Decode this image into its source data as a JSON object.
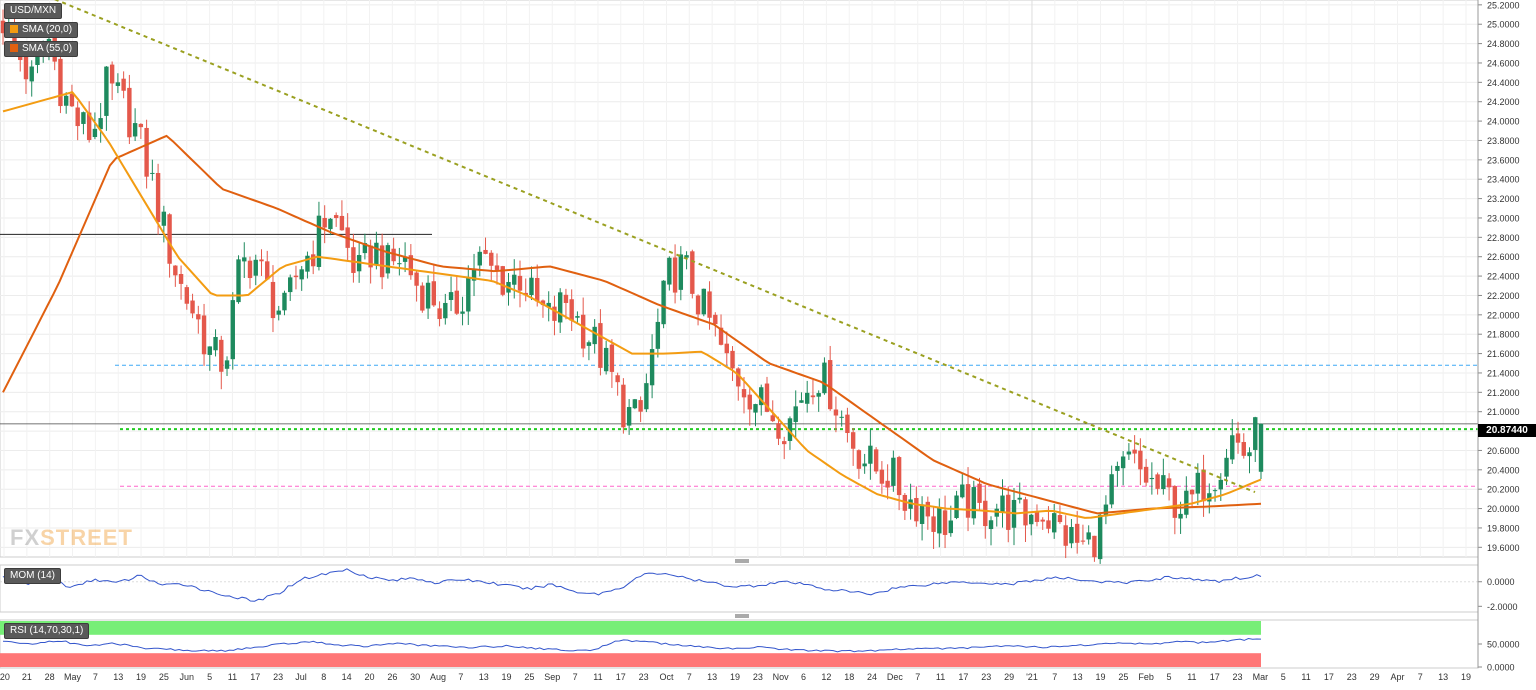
{
  "legend": {
    "symbol": "USD/MXN",
    "sma_fast": "SMA (20,0)",
    "sma_slow": "SMA (55,0)"
  },
  "panels": {
    "momentum_label": "MOM (14)",
    "rsi_label": "RSI (14,70,30,1)"
  },
  "watermark": {
    "part1": "FX",
    "part2": "STREET"
  },
  "last_price": "20.87440",
  "colors": {
    "up": "#1e8a5e",
    "down": "#e4584b",
    "sma_fast": "#f39c12",
    "sma_slow": "#e06010",
    "trendline": "#9aa020",
    "resistance": "#22cc22",
    "support": "#ff66cc",
    "level_blue": "#3fa9f5",
    "momentum": "#3355cc",
    "rsi_overbought": "#77ee77",
    "rsi_oversold": "#ff7777"
  },
  "chart_data": [
    {
      "type": "candlestick",
      "title": "USD/MXN",
      "ylim": [
        19.5,
        25.25
      ],
      "y_ticks": [
        "25.2000",
        "25.0000",
        "24.8000",
        "24.6000",
        "24.4000",
        "24.2000",
        "24.0000",
        "23.8000",
        "23.6000",
        "23.4000",
        "23.2000",
        "23.0000",
        "22.8000",
        "22.6000",
        "22.4000",
        "22.2000",
        "22.0000",
        "21.8000",
        "21.6000",
        "21.4000",
        "21.2000",
        "21.0000",
        "20.8000",
        "20.6000",
        "20.4000",
        "20.2000",
        "20.0000",
        "19.8000",
        "19.6000"
      ],
      "x_ticks": [
        "'20",
        "21",
        "28",
        "May",
        "7",
        "13",
        "19",
        "25",
        "Jun",
        "5",
        "11",
        "17",
        "23",
        "Jul",
        "8",
        "14",
        "20",
        "26",
        "30",
        "Aug",
        "7",
        "13",
        "19",
        "25",
        "Sep",
        "7",
        "11",
        "17",
        "23",
        "Oct",
        "7",
        "13",
        "19",
        "23",
        "Nov",
        "6",
        "12",
        "18",
        "24",
        "Dec",
        "7",
        "11",
        "17",
        "23",
        "29",
        "'21",
        "7",
        "13",
        "19",
        "25",
        "Feb",
        "5",
        "11",
        "17",
        "23",
        "Mar",
        "5",
        "11",
        "17",
        "23",
        "29",
        "Apr",
        "7",
        "13",
        "19"
      ],
      "horizontal_levels": [
        {
          "name": "resistance",
          "value": 20.82
        },
        {
          "name": "support",
          "value": 20.23
        },
        {
          "name": "level_blue",
          "value": 21.48
        },
        {
          "name": "previous_high",
          "value": 22.83
        }
      ],
      "trendline": {
        "start": 25.32,
        "end": 20.17
      },
      "candles_ohlc_anchors": [
        25.05,
        24.7,
        24.4,
        24.9,
        24.3,
        24.0,
        23.85,
        24.35,
        24.2,
        23.9,
        23.4,
        22.8,
        22.3,
        22.0,
        21.6,
        21.5,
        22.5,
        22.6,
        22.2,
        22.0,
        22.5,
        22.7,
        23.1,
        22.8,
        22.4,
        22.7,
        22.5,
        22.6,
        22.3,
        22.2,
        21.95,
        22.2,
        22.6,
        22.45,
        22.35,
        22.4,
        22.1,
        21.95,
        22.15,
        21.9,
        21.7,
        21.4,
        21.0,
        20.9,
        21.7,
        22.4,
        22.5,
        22.15,
        21.85,
        21.45,
        21.3,
        21.1,
        21.0,
        20.85,
        21.2,
        21.4,
        21.2,
        20.8,
        20.55,
        20.4,
        20.35,
        20.1,
        20.05,
        19.9,
        19.85,
        20.1,
        19.95,
        20.05,
        19.95,
        19.9,
        20.0,
        19.85,
        19.7,
        19.6,
        19.75,
        20.2,
        20.5,
        20.35,
        20.2,
        20.1,
        20.0,
        20.25,
        20.4,
        20.75,
        20.55,
        20.87
      ],
      "sma_fast_anchors": [
        24.1,
        24.2,
        24.3,
        23.8,
        23.2,
        22.6,
        22.2,
        22.2,
        22.5,
        22.6,
        22.55,
        22.5,
        22.45,
        22.4,
        22.35,
        22.2,
        22.0,
        21.8,
        21.6,
        21.6,
        21.62,
        21.4,
        21.0,
        20.6,
        20.35,
        20.15,
        20.05,
        20.0,
        19.98,
        19.95,
        19.98,
        19.9,
        19.95,
        20.0,
        20.05,
        20.15,
        20.3
      ],
      "sma_slow_anchors": [
        21.2,
        22.3,
        23.6,
        23.85,
        23.3,
        23.1,
        22.85,
        22.65,
        22.5,
        22.45,
        22.5,
        22.35,
        22.1,
        21.9,
        21.5,
        21.3,
        20.9,
        20.5,
        20.25,
        20.1,
        19.95,
        20.0,
        20.02,
        20.05
      ],
      "last_value": 20.8744
    },
    {
      "type": "line",
      "title": "MOM (14)",
      "ylim": [
        -2.3,
        1.2
      ],
      "y_ticks": [
        "0.0000",
        "-2.0000"
      ],
      "series": [
        {
          "name": "MOM (14)",
          "values": [
            0.4,
            -0.2,
            0.3,
            -0.5,
            0.2,
            -0.1,
            0.5,
            -0.3,
            -0.2,
            -0.8,
            -1.2,
            -1.6,
            -1.0,
            0.2,
            0.6,
            1.0,
            0.4,
            0.1,
            0.3,
            -0.1,
            0.2,
            0.0,
            -0.3,
            -0.6,
            -0.2,
            -0.8,
            -1.0,
            -0.5,
            0.6,
            0.7,
            0.2,
            -0.1,
            -0.4,
            -0.3,
            0.0,
            -0.2,
            -0.6,
            -0.8,
            -1.0,
            -0.5,
            -0.3,
            -0.1,
            0.0,
            -0.1,
            -0.2,
            0.1,
            0.3,
            0.2,
            0.0,
            -0.1,
            0.1,
            0.4,
            0.2,
            0.0,
            0.3,
            0.5
          ]
        }
      ]
    },
    {
      "type": "line",
      "title": "RSI (14,70,30,1)",
      "ylim": [
        0,
        100
      ],
      "y_ticks": [
        "50.0000",
        "0.0000"
      ],
      "overbought": 70,
      "oversold": 30,
      "series": [
        {
          "name": "RSI (14,70,30,1)",
          "values": [
            55,
            50,
            58,
            45,
            52,
            40,
            38,
            35,
            36,
            42,
            50,
            55,
            48,
            45,
            52,
            47,
            44,
            43,
            46,
            41,
            37,
            35,
            58,
            56,
            48,
            43,
            40,
            44,
            38,
            36,
            34,
            35,
            38,
            41,
            40,
            44,
            47,
            43,
            45,
            49,
            52,
            50,
            55,
            53,
            58,
            62
          ]
        }
      ]
    }
  ]
}
